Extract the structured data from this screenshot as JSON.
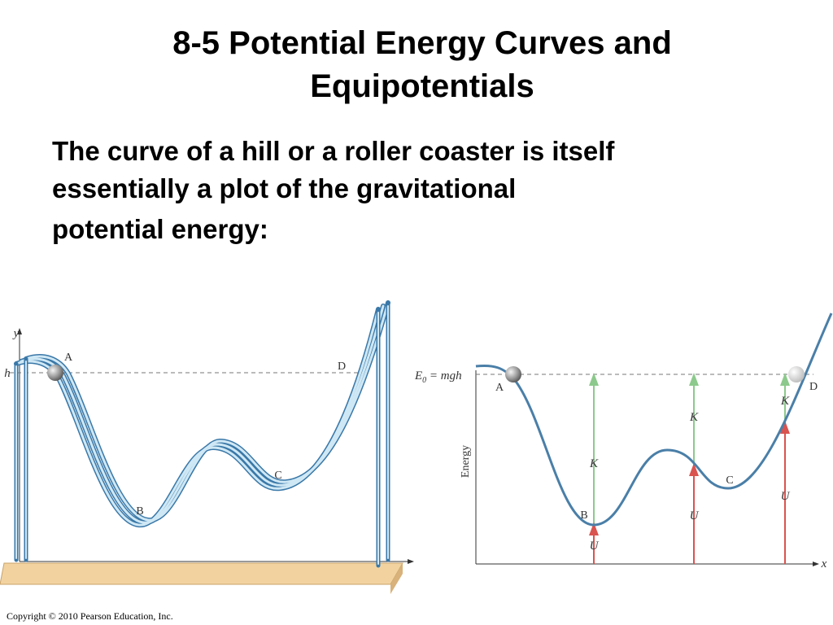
{
  "title": [
    "8-5 Potential Energy Curves and",
    "Equipotentials"
  ],
  "body": [
    "The curve of a hill or a roller coaster is itself",
    "essentially a plot of the gravitational",
    "potential energy:"
  ],
  "figure_left": {
    "y_axis": "y",
    "h_label": "h",
    "points": [
      "A",
      "B",
      "C",
      "D"
    ]
  },
  "figure_right": {
    "e0": {
      "main": "E",
      "sub": "0",
      "rest": " = mgh"
    },
    "y_axis": "Energy",
    "x_axis": "x",
    "points": [
      "A",
      "B",
      "C",
      "D"
    ],
    "bars": [
      {
        "k": "K",
        "u": "U"
      },
      {
        "k": "K",
        "u": "U"
      },
      {
        "k": "K",
        "u": "U"
      }
    ]
  },
  "footer": "Copyright © 2010 Pearson Education, Inc."
}
